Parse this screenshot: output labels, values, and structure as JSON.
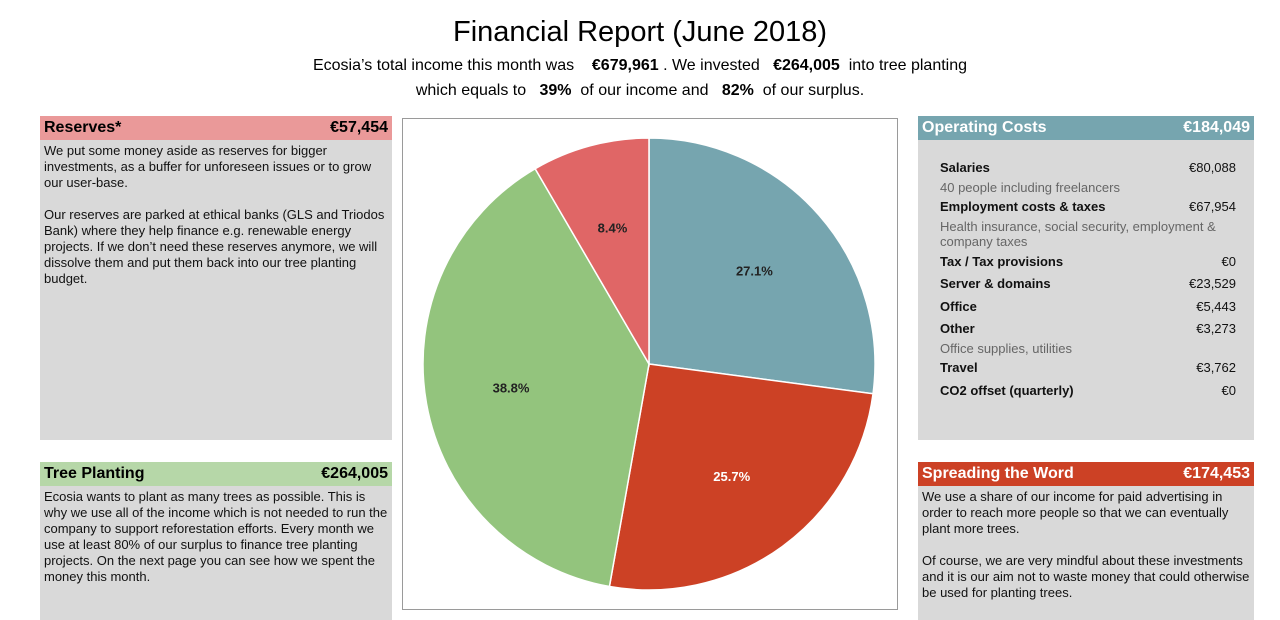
{
  "header": {
    "title": "Financial Report (June 2018)",
    "line1": {
      "pre": "Ecosia’s total income this month was",
      "income": "€679,961",
      "mid": ". We invested",
      "invested": "€264,005",
      "post": "into tree planting"
    },
    "line2": {
      "pre": "which equals to",
      "pct_income": "39%",
      "mid": "of our income and",
      "pct_surplus": "82%",
      "post": "of our surplus."
    }
  },
  "reserves": {
    "title": "Reserves*",
    "amount": "€57,454",
    "header_color": "#ea9999",
    "p1": "We put some money aside as reserves for bigger investments, as a buffer for unforeseen issues or to grow our user-base.",
    "p2": "Our reserves are parked at ethical banks (GLS and Triodos Bank) where they help finance e.g. renewable energy projects. If we don’t need these reserves anymore, we will dissolve them and put them back into our tree planting budget."
  },
  "tree_planting": {
    "title": "Tree Planting",
    "amount": "€264,005",
    "header_color": "#b6d7a8",
    "p1": "Ecosia wants to plant as many trees as possible. This is why we use all of the income which is not needed to run the company to support reforestation efforts. Every month we use at least 80% of our surplus to finance tree planting projects. On the next page you can see how we spent the money this month."
  },
  "operating_costs": {
    "title": "Operating Costs",
    "amount": "€184,049",
    "header_color": "#76a5af",
    "items": [
      {
        "label": "Salaries",
        "value": "€80,088",
        "note": "40 people including freelancers"
      },
      {
        "label": "Employment costs & taxes",
        "value": "€67,954",
        "note": "Health insurance, social security, employment & company taxes"
      },
      {
        "label": "Tax / Tax provisions",
        "value": "€0",
        "note": ""
      },
      {
        "label": "Server & domains",
        "value": "€23,529",
        "note": ""
      },
      {
        "label": "Office",
        "value": "€5,443",
        "note": ""
      },
      {
        "label": "Other",
        "value": "€3,273",
        "note": "Office supplies, utilities"
      },
      {
        "label": "Travel",
        "value": "€3,762",
        "note": ""
      },
      {
        "label": "CO2 offset (quarterly)",
        "value": "€0",
        "note": ""
      }
    ]
  },
  "spreading": {
    "title": "Spreading the Word",
    "amount": "€174,453",
    "header_color": "#cc4125",
    "p1": "We use a share of our income for paid advertising in order to reach more people so that we can eventually plant more trees.",
    "p2": "Of course, we are very mindful about these investments and it is our aim not to waste money that could otherwise be used for planting trees."
  },
  "chart_data": {
    "type": "pie",
    "title": "",
    "slices": [
      {
        "label": "27.1%",
        "value": 27.1,
        "color": "#76a5af",
        "label_color": "#222222"
      },
      {
        "label": "25.7%",
        "value": 25.7,
        "color": "#cc4125",
        "label_color": "#ffffff"
      },
      {
        "label": "38.8%",
        "value": 38.8,
        "color": "#93c47d",
        "label_color": "#222222"
      },
      {
        "label": "8.4%",
        "value": 8.4,
        "color": "#e06666",
        "label_color": "#222222"
      }
    ]
  }
}
